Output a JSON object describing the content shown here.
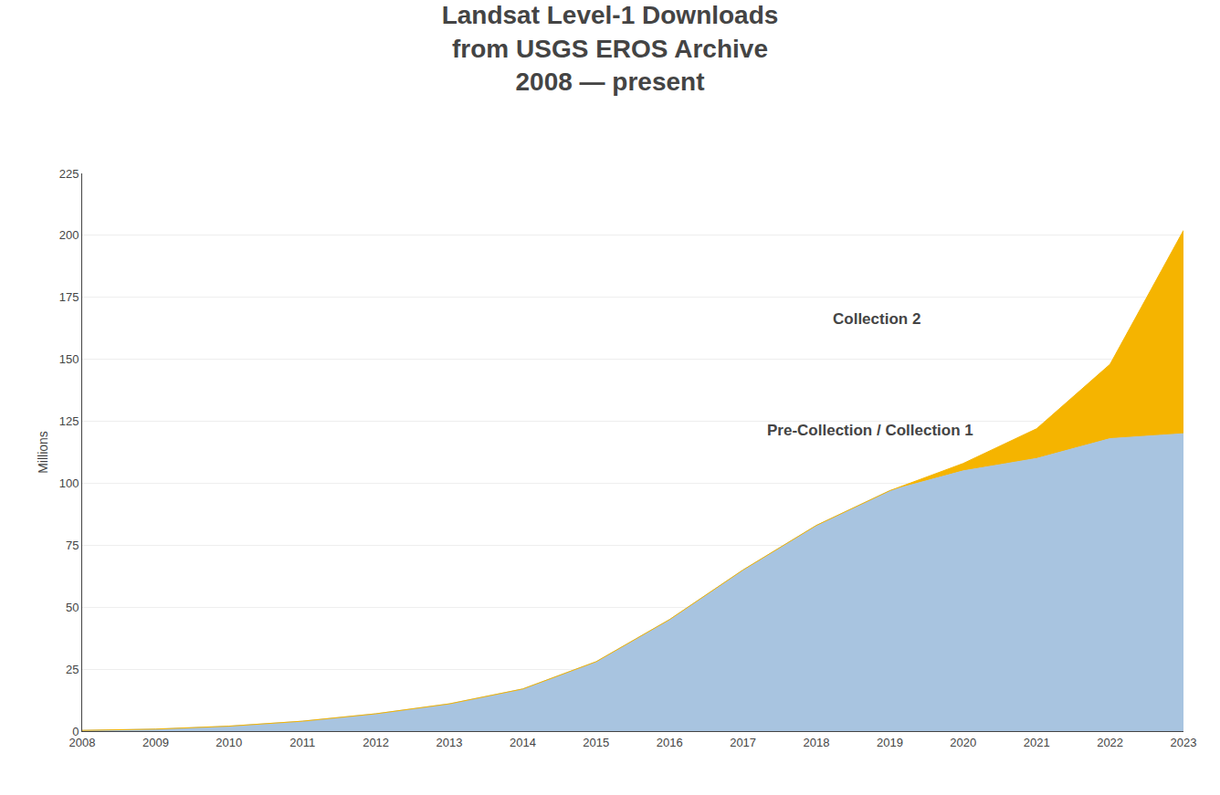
{
  "chart_data": {
    "type": "area",
    "stacked": true,
    "title": [
      "Landsat Level-1 Downloads",
      "from USGS EROS Archive",
      "2008 — present"
    ],
    "ylabel": "Millions",
    "x": [
      2008,
      2009,
      2010,
      2011,
      2012,
      2013,
      2014,
      2015,
      2016,
      2017,
      2018,
      2019,
      2020,
      2021,
      2022,
      2023
    ],
    "series": [
      {
        "color": "#a8c4e0",
        "values": [
          0.3,
          0.8,
          2.0,
          4.0,
          7.0,
          11.0,
          17.0,
          28.0,
          45.0,
          65.0,
          83.0,
          97.0,
          105.0,
          110.0,
          118.0,
          120.0
        ]
      },
      {
        "color": "#f5b400",
        "values": [
          0.0,
          0.0,
          0.0,
          0.0,
          0.0,
          0.0,
          0.0,
          0.0,
          0.0,
          0.0,
          0.0,
          0.0,
          3.0,
          12.0,
          30.0,
          82.0
        ]
      }
    ],
    "annotations": [
      "Pre-Collection / Collection 1",
      "Collection 2"
    ],
    "xlim": [
      2008,
      2023
    ],
    "xticks": [
      2008,
      2009,
      2010,
      2011,
      2012,
      2013,
      2014,
      2015,
      2016,
      2017,
      2018,
      2019,
      2020,
      2021,
      2022,
      2023
    ],
    "ylim": [
      0,
      225
    ],
    "yticks": [
      0,
      25,
      50,
      75,
      100,
      125,
      150,
      175,
      200,
      225
    ],
    "grid": "y"
  }
}
